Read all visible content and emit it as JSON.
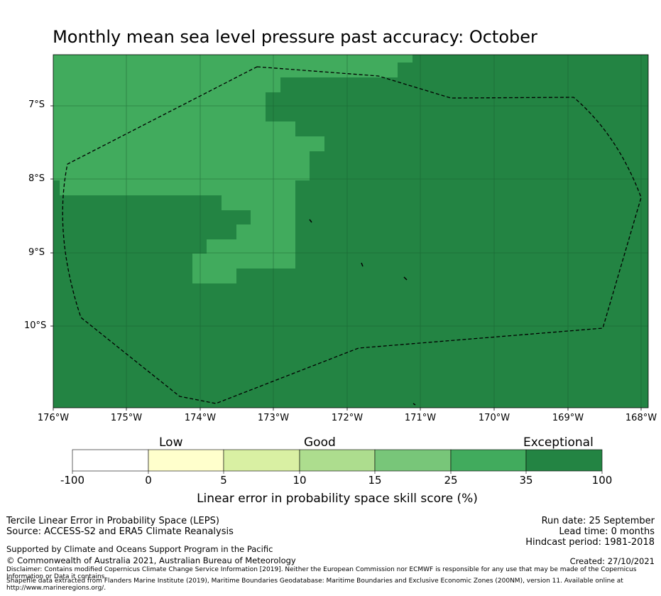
{
  "title": "Monthly mean sea level pressure past accuracy: October",
  "map": {
    "lat_labels": [
      "7°S",
      "8°S",
      "9°S",
      "10°S"
    ],
    "lon_labels": [
      "176°W",
      "175°W",
      "174°W",
      "173°W",
      "172°W",
      "171°W",
      "170°W",
      "169°W",
      "168°W"
    ],
    "colors": {
      "light_green": "#41ab5d",
      "dark_green": "#238443",
      "grid": "#1a5e30",
      "boundary": "#000000"
    }
  },
  "colorbar": {
    "category_labels": [
      "Low",
      "Good",
      "Exceptional"
    ],
    "tick_labels": [
      "-100",
      "0",
      "5",
      "10",
      "15",
      "25",
      "35",
      "100"
    ],
    "colors": [
      "#ffffff",
      "#ffffcc",
      "#d9f0a3",
      "#addd8e",
      "#78c679",
      "#41ab5d",
      "#238443"
    ],
    "xlabel": "Linear error in probability space skill score (%)"
  },
  "footer": {
    "left_line1": "Tercile Linear Error in Probability Space (LEPS)",
    "left_line2": "Source: ACCESS-S2 and ERA5 Climate Reanalysis",
    "support": "Supported by Climate and Oceans Support Program in the Pacific",
    "copyright": "© Commonwealth of Australia 2021, Australian Bureau of Meteorology",
    "disclaimer": "Disclaimer: Contains modified Copernicus Climate Change Service Information [2019]. Neither the European Commission nor ECMWF is responsible for any use that may be made of the Copernicus Information or Data it contains.",
    "shapefile": "Shapefile data extracted from Flanders Marine Institute (2019), Maritime Boundaries Geodatabase: Maritime Boundaries and Exclusive Economic Zones (200NM), version 11. Available online at http://www.marineregions.org/.",
    "run_date": "Run date: 25 September",
    "lead_time": "Lead time: 0 months",
    "hindcast": "Hindcast period: 1981-2018",
    "created": "Created: 27/10/2021"
  }
}
